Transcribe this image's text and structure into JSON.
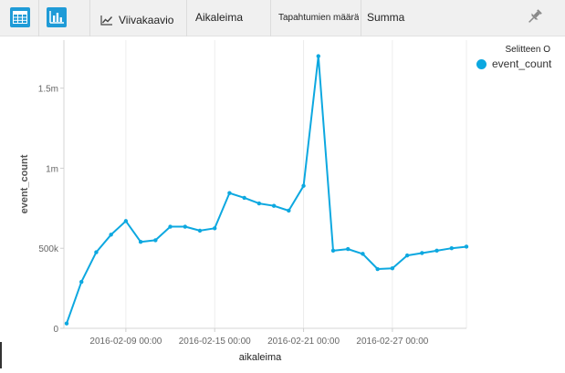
{
  "toolbar": {
    "table_view_icon": "table-icon",
    "chart_view_icon": "bar-chart-icon",
    "chart_type_label": "Viivakaavio",
    "x_field_label": "Aikaleima",
    "split_field_label": "Tapahtumien määrä",
    "aggregate_label": "Summa",
    "pin_icon": "pin-icon"
  },
  "legend": {
    "title": "Selitteen O",
    "items": [
      {
        "label": "event_count",
        "color": "#0da8e0"
      }
    ]
  },
  "colors": {
    "accent": "#1f9bd7",
    "series": "#0da8e0"
  },
  "chart_data": {
    "type": "line",
    "xlabel": "aikaleima",
    "ylabel": "event_count",
    "x": [
      "2016-02-05",
      "2016-02-06",
      "2016-02-07",
      "2016-02-08",
      "2016-02-09",
      "2016-02-10",
      "2016-02-11",
      "2016-02-12",
      "2016-02-13",
      "2016-02-14",
      "2016-02-15",
      "2016-02-16",
      "2016-02-17",
      "2016-02-18",
      "2016-02-19",
      "2016-02-20",
      "2016-02-21",
      "2016-02-22",
      "2016-02-23",
      "2016-02-24",
      "2016-02-25",
      "2016-02-26",
      "2016-02-27",
      "2016-02-28",
      "2016-02-29",
      "2016-03-01",
      "2016-03-02",
      "2016-03-03"
    ],
    "series": [
      {
        "name": "event_count",
        "values": [
          30000,
          290000,
          475000,
          585000,
          670000,
          540000,
          550000,
          635000,
          635000,
          610000,
          625000,
          845000,
          815000,
          780000,
          765000,
          735000,
          890000,
          1700000,
          485000,
          495000,
          465000,
          370000,
          375000,
          455000,
          470000,
          485000,
          500000,
          510000
        ]
      }
    ],
    "ylim": [
      0,
      1800000
    ],
    "yticks": [
      {
        "value": 0,
        "label": "0"
      },
      {
        "value": 500000,
        "label": "500k"
      },
      {
        "value": 1000000,
        "label": "1m"
      },
      {
        "value": 1500000,
        "label": "1.5m"
      }
    ],
    "xticks": [
      {
        "date": "2016-02-09",
        "label": "2016-02-09 00:00"
      },
      {
        "date": "2016-02-15",
        "label": "2016-02-15 00:00"
      },
      {
        "date": "2016-02-21",
        "label": "2016-02-21 00:00"
      },
      {
        "date": "2016-02-27",
        "label": "2016-02-27 00:00"
      }
    ],
    "grid": "vertical",
    "legend_position": "top-right"
  }
}
